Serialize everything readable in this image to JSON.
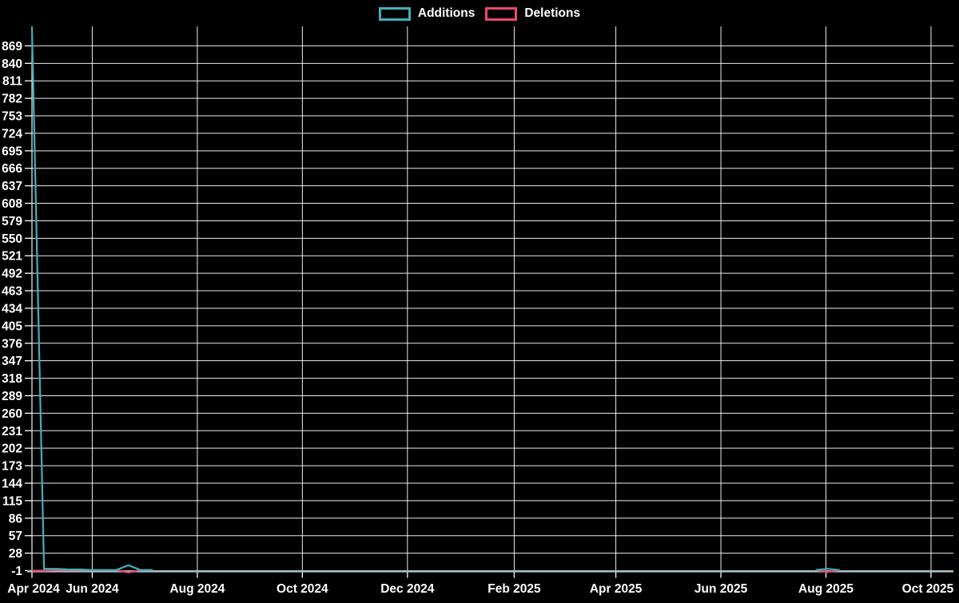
{
  "legend": {
    "items": [
      {
        "id": "additions",
        "label": "Additions",
        "color": "#41b0ba"
      },
      {
        "id": "deletions",
        "label": "Deletions",
        "color": "#ea4a6b"
      }
    ]
  },
  "colors": {
    "background": "#000000",
    "grid": "#ffffff",
    "axis_baseline": "#a9bdc7",
    "axis_border": "#f2f2f2",
    "text": "#ffffff",
    "additions": "#41b0ba",
    "deletions": "#ea4a6b"
  },
  "chart_data": {
    "type": "line",
    "title": "",
    "xlabel": "",
    "ylabel": "",
    "legend_position": "top",
    "grid": true,
    "x_axis": {
      "type": "time",
      "min": "2024-04-27",
      "max": "2025-10-14",
      "ticks": [
        {
          "date": "2024-04-27",
          "label": "Apr 2024"
        },
        {
          "date": "2024-06-01",
          "label": "Jun 2024"
        },
        {
          "date": "2024-08-01",
          "label": "Aug 2024"
        },
        {
          "date": "2024-10-01",
          "label": "Oct 2024"
        },
        {
          "date": "2024-12-01",
          "label": "Dec 2024"
        },
        {
          "date": "2025-02-01",
          "label": "Feb 2025"
        },
        {
          "date": "2025-04-01",
          "label": "Apr 2025"
        },
        {
          "date": "2025-06-01",
          "label": "Jun 2025"
        },
        {
          "date": "2025-08-01",
          "label": "Aug 2025"
        },
        {
          "date": "2025-10-01",
          "label": "Oct 2025"
        }
      ]
    },
    "y_axis": {
      "min": -1,
      "max": 900,
      "tick_step": 29,
      "ticks": [
        869,
        840,
        811,
        782,
        753,
        724,
        695,
        666,
        637,
        608,
        579,
        550,
        521,
        492,
        463,
        434,
        405,
        376,
        347,
        318,
        289,
        260,
        231,
        202,
        173,
        144,
        115,
        86,
        57,
        28,
        -1
      ]
    },
    "series": [
      {
        "name": "Additions",
        "color": "#41b0ba",
        "segments": [
          [
            [
              "2024-04-27",
              900
            ],
            [
              "2024-05-04",
              2
            ],
            [
              "2024-05-11",
              2
            ],
            [
              "2024-05-18",
              1
            ],
            [
              "2024-05-25",
              1
            ],
            [
              "2024-06-01",
              0
            ],
            [
              "2024-06-08",
              0
            ],
            [
              "2024-06-15",
              0
            ],
            [
              "2024-06-22",
              8
            ],
            [
              "2024-06-29",
              0
            ],
            [
              "2024-07-06",
              0
            ]
          ],
          [
            [
              "2025-07-26",
              0
            ],
            [
              "2025-08-02",
              2
            ],
            [
              "2025-08-09",
              0
            ]
          ]
        ]
      },
      {
        "name": "Deletions",
        "color": "#ea4a6b",
        "segments": [
          [
            [
              "2024-04-27",
              -1
            ],
            [
              "2024-05-04",
              -1
            ],
            [
              "2024-05-11",
              0
            ],
            [
              "2024-06-15",
              0
            ],
            [
              "2024-06-22",
              -4
            ],
            [
              "2024-06-29",
              0
            ],
            [
              "2024-07-06",
              0
            ]
          ],
          [
            [
              "2025-07-26",
              0
            ],
            [
              "2025-08-02",
              -3
            ],
            [
              "2025-08-09",
              0
            ]
          ]
        ]
      }
    ]
  }
}
